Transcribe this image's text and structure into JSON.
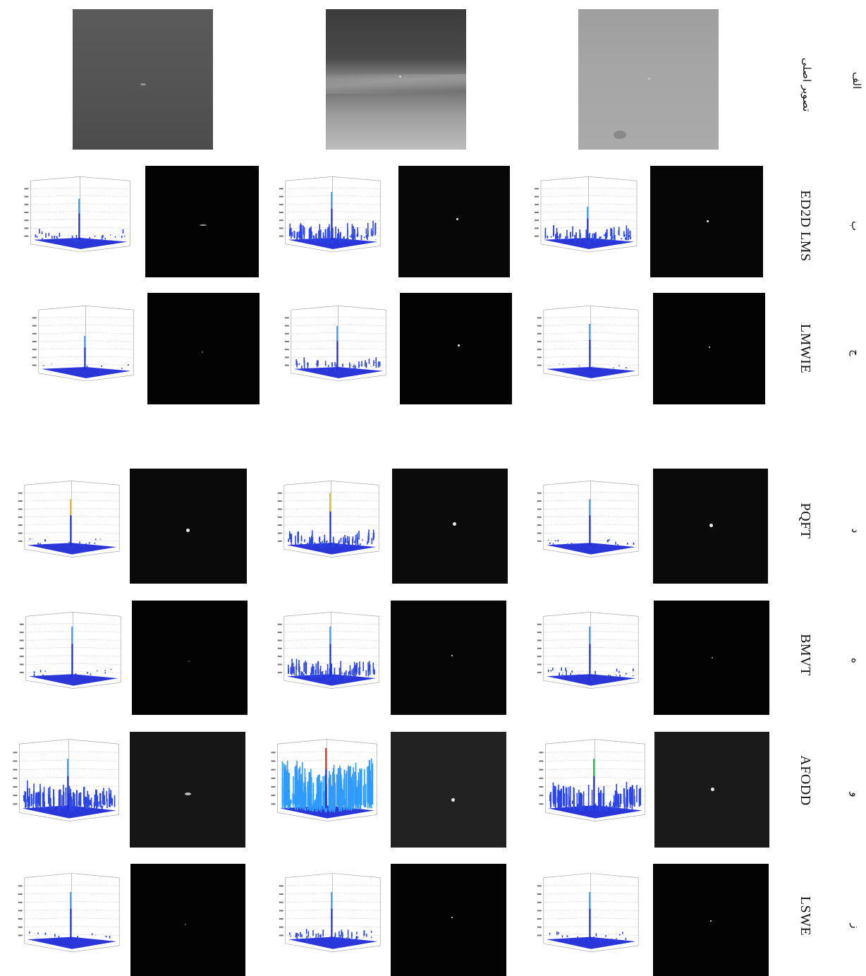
{
  "row_labels": [
    {
      "letter": "الف",
      "method": "تصویر اصلی"
    },
    {
      "letter": "ب",
      "method": "ED2D LMS"
    },
    {
      "letter": "ج",
      "method": "LMWIE"
    },
    {
      "letter": "د",
      "method": "PQFT"
    },
    {
      "letter": "ه",
      "method": "BMVT"
    },
    {
      "letter": "و",
      "method": "AFODD"
    },
    {
      "letter": "ز",
      "method": "LSWE"
    }
  ],
  "colors": {
    "surface_blue": "#1f2bd6",
    "surface_peak": "#3fa0ff",
    "peak_hot": "#e03a2a",
    "axis_grey": "#8a8a8a",
    "black_image": "#030303"
  }
}
